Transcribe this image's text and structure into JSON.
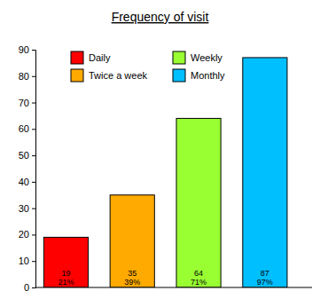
{
  "chart_data": {
    "type": "bar",
    "title": "Frequency of visit",
    "categories": [
      "Daily",
      "Twice a week",
      "Weekly",
      "Monthly"
    ],
    "values": [
      19,
      35,
      64,
      87
    ],
    "percent_labels": [
      "21%",
      "39%",
      "71%",
      "97%"
    ],
    "colors": [
      "#ff0000",
      "#ffaa00",
      "#99ff33",
      "#00bfff"
    ],
    "ylim": [
      0,
      90
    ],
    "yticks": [
      0,
      10,
      20,
      30,
      40,
      50,
      60,
      70,
      80,
      90
    ],
    "grid": false,
    "legend": "top",
    "data_labels": true,
    "tick_labels": "y"
  }
}
